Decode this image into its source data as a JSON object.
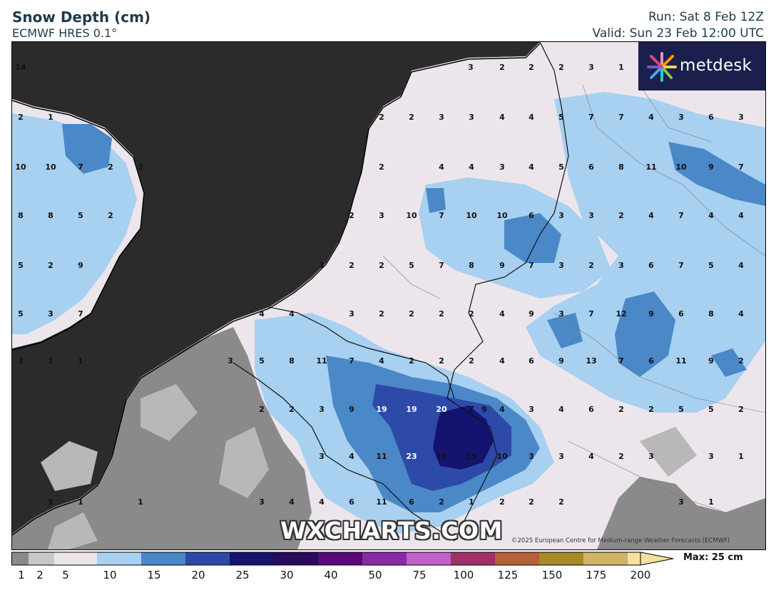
{
  "header": {
    "title": "Snow Depth (cm)",
    "subtitle": "ECMWF HRES 0.1°",
    "run": "Run: Sat 8 Feb 12Z",
    "valid": "Valid: Sun 23 Feb 12:00 UTC"
  },
  "logo": {
    "text": "metdesk"
  },
  "watermark": "WXCHARTS.COM",
  "copyright": "©2025 European Centre for Medium-range Weather Forecasts (ECMWF)",
  "legend": {
    "max_label": "Max: 25 cm",
    "ticks": [
      "1",
      "2",
      "5",
      "10",
      "15",
      "20",
      "25",
      "30",
      "40",
      "50",
      "75",
      "100",
      "125",
      "150",
      "175",
      "200"
    ],
    "colors": [
      "#8a8a8a",
      "#c8c8c8",
      "#ece6ec",
      "#a8d0f0",
      "#4a88c8",
      "#2e4aa8",
      "#141470",
      "#2a0a5a",
      "#5a0a78",
      "#8a2aa8",
      "#c060c8",
      "#a0306a",
      "#b86038",
      "#a88a28",
      "#d0b468",
      "#f4e0a0"
    ]
  },
  "colors": {
    "sea": "#2b2b2b",
    "land_no_snow": "#8a8a8a",
    "snow_trace": "#ece6ec",
    "snow_5_10": "#a8d0f0",
    "snow_10_15": "#4a88c8",
    "snow_15_20": "#2e4aa8",
    "snow_20_25": "#141470"
  },
  "map_values": [
    {
      "t": "14"
    },
    {
      "t": "3"
    },
    {
      "t": "2"
    },
    {
      "t": "2"
    },
    {
      "t": "2"
    },
    {
      "t": "3"
    },
    {
      "t": "1"
    },
    {
      "t": "2"
    },
    {
      "t": "1"
    },
    {
      "t": "2"
    },
    {
      "t": "2"
    },
    {
      "t": "3"
    },
    {
      "t": "3"
    },
    {
      "t": "4"
    },
    {
      "t": "4"
    },
    {
      "t": "5"
    },
    {
      "t": "7"
    },
    {
      "t": "7"
    },
    {
      "t": "4"
    },
    {
      "t": "3"
    },
    {
      "t": "6"
    },
    {
      "t": "3"
    },
    {
      "t": "10"
    },
    {
      "t": "10"
    },
    {
      "t": "7"
    },
    {
      "t": "2"
    },
    {
      "t": "2"
    },
    {
      "t": "2"
    },
    {
      "t": "4"
    },
    {
      "t": "4"
    },
    {
      "t": "3"
    },
    {
      "t": "4"
    },
    {
      "t": "5"
    },
    {
      "t": "6"
    },
    {
      "t": "8"
    },
    {
      "t": "11"
    },
    {
      "t": "10"
    },
    {
      "t": "9"
    },
    {
      "t": "7"
    },
    {
      "t": "8"
    },
    {
      "t": "8"
    },
    {
      "t": "5"
    },
    {
      "t": "2"
    },
    {
      "t": "2"
    },
    {
      "t": "3"
    },
    {
      "t": "10"
    },
    {
      "t": "7"
    },
    {
      "t": "10"
    },
    {
      "t": "10"
    },
    {
      "t": "6"
    },
    {
      "t": "3"
    },
    {
      "t": "3"
    },
    {
      "t": "2"
    },
    {
      "t": "4"
    },
    {
      "t": "7"
    },
    {
      "t": "4"
    },
    {
      "t": "4"
    },
    {
      "t": "5"
    },
    {
      "t": "2"
    },
    {
      "t": "9"
    },
    {
      "t": "3"
    },
    {
      "t": "2"
    },
    {
      "t": "2"
    },
    {
      "t": "5"
    },
    {
      "t": "7"
    },
    {
      "t": "8"
    },
    {
      "t": "9"
    },
    {
      "t": "7"
    },
    {
      "t": "3"
    },
    {
      "t": "2"
    },
    {
      "t": "3"
    },
    {
      "t": "6"
    },
    {
      "t": "7"
    },
    {
      "t": "5"
    },
    {
      "t": "4"
    },
    {
      "t": "5"
    },
    {
      "t": "3"
    },
    {
      "t": "7"
    },
    {
      "t": "4"
    },
    {
      "t": "4"
    },
    {
      "t": "3"
    },
    {
      "t": "2"
    },
    {
      "t": "2"
    },
    {
      "t": "2"
    },
    {
      "t": "2"
    },
    {
      "t": "4"
    },
    {
      "t": "9"
    },
    {
      "t": "3"
    },
    {
      "t": "7"
    },
    {
      "t": "12"
    },
    {
      "t": "9"
    },
    {
      "t": "6"
    },
    {
      "t": "8"
    },
    {
      "t": "4"
    },
    {
      "t": "3"
    },
    {
      "t": "1"
    },
    {
      "t": "1"
    },
    {
      "t": "3"
    },
    {
      "t": "5"
    },
    {
      "t": "8"
    },
    {
      "t": "11"
    },
    {
      "t": "7"
    },
    {
      "t": "4"
    },
    {
      "t": "2"
    },
    {
      "t": "2"
    },
    {
      "t": "2"
    },
    {
      "t": "4"
    },
    {
      "t": "6"
    },
    {
      "t": "9"
    },
    {
      "t": "13"
    },
    {
      "t": "7"
    },
    {
      "t": "6"
    },
    {
      "t": "11"
    },
    {
      "t": "9"
    },
    {
      "t": "2"
    },
    {
      "t": "2"
    },
    {
      "t": "2"
    },
    {
      "t": "3"
    },
    {
      "t": "9"
    },
    {
      "t": "19"
    },
    {
      "t": "19"
    },
    {
      "t": "20"
    },
    {
      "t": "7"
    },
    {
      "t": "9"
    },
    {
      "t": "4"
    },
    {
      "t": "3"
    },
    {
      "t": "4"
    },
    {
      "t": "6"
    },
    {
      "t": "2"
    },
    {
      "t": "2"
    },
    {
      "t": "5"
    },
    {
      "t": "5"
    },
    {
      "t": "2"
    },
    {
      "t": "3"
    },
    {
      "t": "4"
    },
    {
      "t": "11"
    },
    {
      "t": "23"
    },
    {
      "t": "15"
    },
    {
      "t": "15"
    },
    {
      "t": "10"
    },
    {
      "t": "3"
    },
    {
      "t": "3"
    },
    {
      "t": "4"
    },
    {
      "t": "2"
    },
    {
      "t": "3"
    },
    {
      "t": "3"
    },
    {
      "t": "1"
    },
    {
      "t": "3"
    },
    {
      "t": "1"
    },
    {
      "t": "1"
    },
    {
      "t": "3"
    },
    {
      "t": "4"
    },
    {
      "t": "4"
    },
    {
      "t": "6"
    },
    {
      "t": "11"
    },
    {
      "t": "6"
    },
    {
      "t": "2"
    },
    {
      "t": "1"
    },
    {
      "t": "2"
    },
    {
      "t": "2"
    },
    {
      "t": "2"
    },
    {
      "t": "3"
    },
    {
      "t": "1"
    }
  ]
}
